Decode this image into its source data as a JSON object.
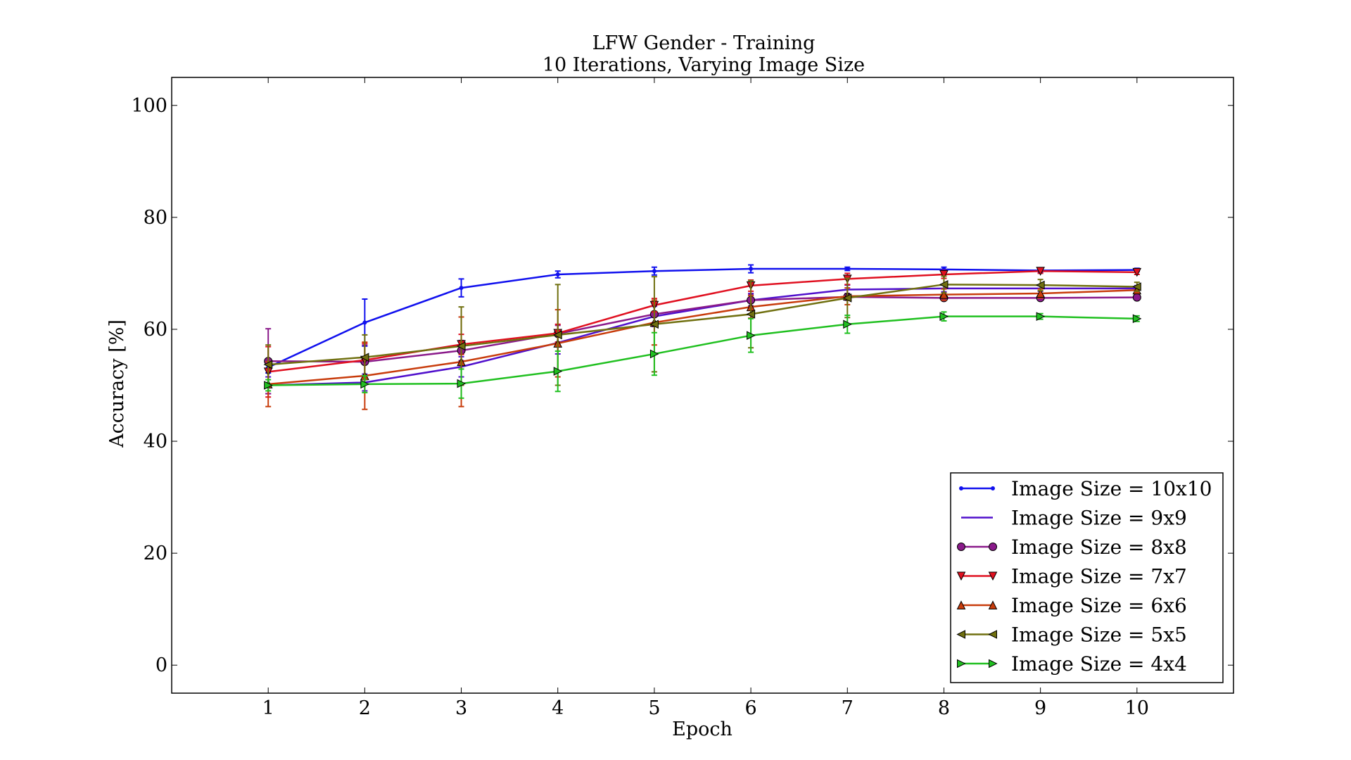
{
  "chart_data": {
    "type": "line",
    "title": "LFW Gender - Training",
    "subtitle": "10 Iterations, Varying Image Size",
    "xlabel": "Epoch",
    "ylabel": "Accuracy [%]",
    "xlim": [
      0,
      11
    ],
    "ylim": [
      -5,
      105
    ],
    "x": [
      1,
      2,
      3,
      4,
      5,
      6,
      7,
      8,
      9,
      10
    ],
    "xticks": [
      "1",
      "2",
      "3",
      "4",
      "5",
      "6",
      "7",
      "8",
      "9",
      "10"
    ],
    "yticks": [
      "0",
      "20",
      "40",
      "60",
      "80",
      "100"
    ],
    "legend_position": "lower-right",
    "grid": false,
    "series": [
      {
        "name": "Image Size = 10x10",
        "color": "#1010ee",
        "marker": "point",
        "values": [
          53.2,
          61.2,
          67.4,
          69.8,
          70.4,
          70.8,
          70.8,
          70.7,
          70.5,
          70.6
        ],
        "errors": [
          1.0,
          4.2,
          1.6,
          0.6,
          0.7,
          0.7,
          0.3,
          0.4,
          0.3,
          0.3
        ]
      },
      {
        "name": "Image Size = 9x9",
        "color": "#5010cc",
        "marker": "none",
        "values": [
          50.0,
          50.5,
          53.3,
          57.6,
          62.3,
          65.2,
          67.1,
          67.3,
          67.3,
          67.3
        ],
        "errors": [
          1.5,
          1.5,
          1.8,
          2.0,
          1.8,
          1.2,
          0.8,
          0.6,
          0.5,
          0.5
        ]
      },
      {
        "name": "Image Size = 8x8",
        "color": "#8a1a8a",
        "marker": "circle",
        "values": [
          54.3,
          54.2,
          56.2,
          59.2,
          62.7,
          65.2,
          65.8,
          65.6,
          65.6,
          65.7
        ],
        "errors": [
          5.8,
          3.0,
          1.8,
          1.5,
          1.5,
          1.0,
          0.6,
          0.4,
          0.3,
          0.3
        ]
      },
      {
        "name": "Image Size = 7x7",
        "color": "#e01020",
        "marker": "triangle-down",
        "values": [
          52.4,
          54.5,
          57.3,
          59.3,
          64.3,
          67.8,
          69.0,
          69.8,
          70.4,
          70.2
        ],
        "errors": [
          4.5,
          3.0,
          1.8,
          1.6,
          1.2,
          1.0,
          1.0,
          0.7,
          0.4,
          0.4
        ]
      },
      {
        "name": "Image Size = 6x6",
        "color": "#c83c0c",
        "marker": "triangle-up",
        "values": [
          50.2,
          51.7,
          54.2,
          57.5,
          61.2,
          64.0,
          65.9,
          66.2,
          66.4,
          67.0
        ],
        "errors": [
          4.0,
          6.0,
          8.0,
          6.0,
          4.0,
          2.0,
          1.5,
          1.0,
          0.8,
          0.5
        ]
      },
      {
        "name": "Image Size = 5x5",
        "color": "#707010",
        "marker": "triangle-left",
        "values": [
          53.7,
          55.0,
          57.0,
          59.0,
          60.9,
          62.7,
          65.6,
          68.0,
          67.9,
          67.6
        ],
        "errors": [
          3.5,
          4.0,
          7.0,
          9.0,
          8.5,
          6.0,
          3.5,
          1.5,
          1.0,
          0.8
        ]
      },
      {
        "name": "Image Size = 4x4",
        "color": "#20c020",
        "marker": "triangle-right",
        "values": [
          50.0,
          50.2,
          50.3,
          52.5,
          55.6,
          58.9,
          60.9,
          62.3,
          62.3,
          61.9
        ],
        "errors": [
          1.0,
          1.5,
          2.6,
          3.6,
          3.8,
          3.0,
          1.6,
          0.8,
          0.5,
          0.5
        ]
      }
    ]
  }
}
